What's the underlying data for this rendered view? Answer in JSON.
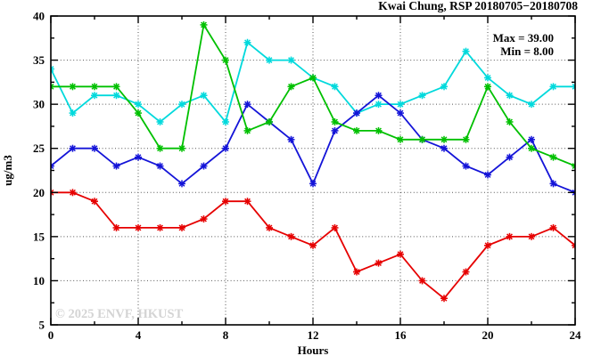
{
  "chart_data": {
    "type": "line",
    "title": "Kwai Chung, RSP 20180705−20180708",
    "annotations": {
      "max_label": "Max = 39.00",
      "min_label": "Min =  8.00"
    },
    "xlabel": "Hours",
    "ylabel": "ug/m3",
    "xlim": [
      0,
      24
    ],
    "ylim": [
      5,
      40
    ],
    "x_major_ticks": [
      0,
      4,
      8,
      12,
      16,
      20,
      24
    ],
    "x_minor_step": 2,
    "y_major_ticks": [
      5,
      10,
      15,
      20,
      25,
      30,
      35,
      40
    ],
    "y_minor_step": 2.5,
    "x_gridlines": [
      4,
      8,
      12,
      16,
      20
    ],
    "y_gridlines": [
      10,
      15,
      20,
      25,
      30,
      35
    ],
    "grid_style": "dotted",
    "legend_position": "top-right-inside",
    "x": [
      0,
      1,
      2,
      3,
      4,
      5,
      6,
      7,
      8,
      9,
      10,
      11,
      12,
      13,
      14,
      15,
      16,
      17,
      18,
      19,
      20,
      21,
      22,
      23,
      24
    ],
    "series": [
      {
        "name": "red",
        "color": "#e60000",
        "values": [
          20,
          20,
          19,
          16,
          16,
          16,
          16,
          17,
          19,
          19,
          16,
          15,
          14,
          16,
          11,
          12,
          13,
          10,
          8,
          11,
          14,
          15,
          15,
          16,
          14
        ]
      },
      {
        "name": "cyan",
        "color": "#00d9dc",
        "values": [
          34,
          29,
          31,
          31,
          30,
          28,
          30,
          31,
          28,
          37,
          35,
          35,
          33,
          32,
          29,
          30,
          30,
          31,
          32,
          36,
          33,
          31,
          30,
          32,
          32
        ]
      },
      {
        "name": "blue",
        "color": "#1414d8",
        "values": [
          23,
          25,
          25,
          23,
          24,
          23,
          21,
          23,
          25,
          30,
          28,
          26,
          21,
          27,
          29,
          31,
          29,
          26,
          25,
          23,
          22,
          24,
          26,
          21,
          20
        ]
      },
      {
        "name": "green",
        "color": "#00c000",
        "values": [
          32,
          32,
          32,
          32,
          29,
          25,
          25,
          39,
          35,
          27,
          28,
          32,
          33,
          28,
          27,
          27,
          26,
          26,
          26,
          26,
          32,
          28,
          25,
          24,
          23
        ]
      }
    ],
    "watermark": "© 2025 ENVF, HKUST",
    "colors": {
      "axis": "#000000",
      "grid": "#555555",
      "watermark": "#d4d4d4",
      "background": "#ffffff"
    }
  }
}
